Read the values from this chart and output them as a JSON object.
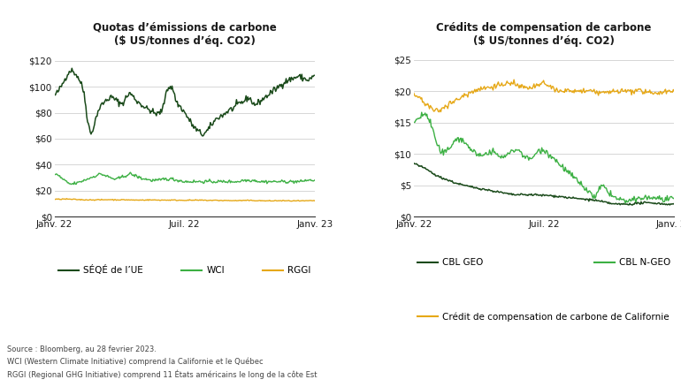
{
  "title1": "Quotas d’émissions de carbone\n($ US/tonnes d’éq. CO2)",
  "title2": "Crédits de compensation de carbone\n($ US/tonnes d’éq. CO2)",
  "xtick_labels": [
    "Janv. 22",
    "Juil. 22",
    "Janv. 23"
  ],
  "ax1_yticks": [
    0,
    20,
    40,
    60,
    80,
    100,
    120
  ],
  "ax2_yticks": [
    0,
    5,
    10,
    15,
    20,
    25
  ],
  "legend1": [
    {
      "label": "SÉQÉ de l’UE",
      "color": "#1a4a1a"
    },
    {
      "label": "WCI",
      "color": "#3cb043"
    },
    {
      "label": "RGGI",
      "color": "#e6a817"
    }
  ],
  "legend2_row1": [
    {
      "label": "CBL GEO",
      "color": "#1a4a1a"
    },
    {
      "label": "CBL N-GEO",
      "color": "#3cb043"
    }
  ],
  "legend2_row2": [
    {
      "label": "Crédit de compensation de carbone de Californie",
      "color": "#e6a817"
    }
  ],
  "footnote": "Source : Bloomberg, au 28 fevrier 2023.\nWCI (Western Climate Initiative) comprend la Californie et le Québec\nRGGI (Regional GHG Initiative) comprend 11 États américains le long de la côte Est",
  "bg_color": "#ffffff",
  "grid_color": "#d0d0d0",
  "text_color": "#1a1a1a",
  "footnote_color": "#444444"
}
